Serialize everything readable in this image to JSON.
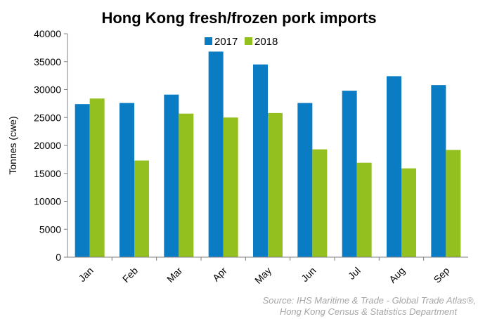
{
  "chart_data": {
    "type": "bar",
    "title": "Hong Kong fresh/frozen pork imports",
    "ylabel": "Tonnes (cwe)",
    "xlabel": "",
    "categories": [
      "Jan",
      "Feb",
      "Mar",
      "Apr",
      "May",
      "Jun",
      "Jul",
      "Aug",
      "Sep"
    ],
    "series": [
      {
        "name": "2017",
        "color": "#0a7cc4",
        "values": [
          27400,
          27600,
          29100,
          36800,
          34500,
          27600,
          29800,
          32400,
          30800
        ]
      },
      {
        "name": "2018",
        "color": "#93c01f",
        "values": [
          28400,
          17300,
          25700,
          25000,
          25800,
          19300,
          16900,
          15900,
          19200
        ]
      }
    ],
    "ylim": [
      0,
      40000
    ],
    "yticks": [
      "0",
      "5000",
      "10000",
      "15000",
      "20000",
      "25000",
      "30000",
      "35000",
      "40000"
    ],
    "grid": false,
    "legend": "top-center",
    "source_lines": [
      "Source: IHS Maritime & Trade - Global Trade Atlas®,",
      "Hong Kong Census & Statistics Department"
    ]
  }
}
